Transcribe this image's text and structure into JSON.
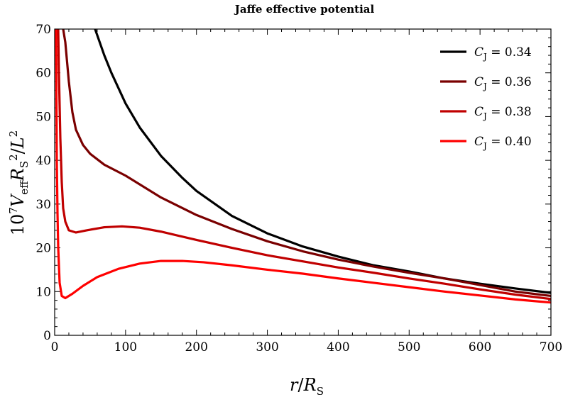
{
  "chart_data": {
    "type": "line",
    "title": "Jaffe effective potential",
    "xlabel": "r/R_S",
    "ylabel": "10^7 V_eff R_S^2/L^2",
    "xlim": [
      0,
      700
    ],
    "ylim": [
      0,
      70
    ],
    "x_ticks": [
      "0",
      "100",
      "200",
      "300",
      "400",
      "500",
      "600",
      "700"
    ],
    "y_ticks": [
      "0",
      "10",
      "20",
      "30",
      "40",
      "50",
      "60",
      "70"
    ],
    "legend_position": "top-right",
    "grid": false,
    "series": [
      {
        "name": "C_J = 0.34",
        "color": "#000000",
        "points": [
          [
            57,
            70
          ],
          [
            70,
            64
          ],
          [
            80,
            60
          ],
          [
            100,
            53
          ],
          [
            120,
            47.5
          ],
          [
            150,
            41
          ],
          [
            180,
            36
          ],
          [
            200,
            33
          ],
          [
            250,
            27.3
          ],
          [
            300,
            23.3
          ],
          [
            350,
            20.3
          ],
          [
            400,
            18
          ],
          [
            450,
            16
          ],
          [
            500,
            14.6
          ],
          [
            550,
            13
          ],
          [
            600,
            11.8
          ],
          [
            650,
            10.7
          ],
          [
            700,
            9.7
          ]
        ]
      },
      {
        "name": "C_J = 0.36",
        "color": "#7a0000",
        "points": [
          [
            12,
            70
          ],
          [
            15,
            67
          ],
          [
            20,
            58
          ],
          [
            25,
            51
          ],
          [
            30,
            47
          ],
          [
            40,
            43.5
          ],
          [
            50,
            41.5
          ],
          [
            70,
            39
          ],
          [
            100,
            36.5
          ],
          [
            150,
            31.5
          ],
          [
            200,
            27.5
          ],
          [
            250,
            24.3
          ],
          [
            300,
            21.5
          ],
          [
            350,
            19.2
          ],
          [
            400,
            17.3
          ],
          [
            450,
            15.7
          ],
          [
            500,
            14.3
          ],
          [
            550,
            13
          ],
          [
            600,
            11.5
          ],
          [
            650,
            10
          ],
          [
            700,
            9
          ]
        ]
      },
      {
        "name": "C_J = 0.38",
        "color": "#c00000",
        "points": [
          [
            5,
            70
          ],
          [
            6,
            60
          ],
          [
            8,
            45
          ],
          [
            10,
            35
          ],
          [
            12,
            29
          ],
          [
            15,
            26
          ],
          [
            20,
            24
          ],
          [
            30,
            23.5
          ],
          [
            45,
            24
          ],
          [
            70,
            24.7
          ],
          [
            95,
            24.9
          ],
          [
            120,
            24.6
          ],
          [
            150,
            23.7
          ],
          [
            200,
            21.8
          ],
          [
            250,
            20
          ],
          [
            300,
            18.3
          ],
          [
            350,
            16.9
          ],
          [
            400,
            15.5
          ],
          [
            450,
            14.3
          ],
          [
            500,
            13
          ],
          [
            550,
            11.8
          ],
          [
            600,
            10.5
          ],
          [
            650,
            9.3
          ],
          [
            700,
            8.3
          ]
        ]
      },
      {
        "name": "C_J = 0.40",
        "color": "#ff0000",
        "points": [
          [
            2,
            70
          ],
          [
            2.5,
            55
          ],
          [
            3,
            40
          ],
          [
            4,
            28
          ],
          [
            5,
            20
          ],
          [
            7,
            12
          ],
          [
            10,
            9
          ],
          [
            15,
            8.5
          ],
          [
            25,
            9.5
          ],
          [
            40,
            11.3
          ],
          [
            60,
            13.3
          ],
          [
            90,
            15.2
          ],
          [
            120,
            16.4
          ],
          [
            150,
            17
          ],
          [
            180,
            17
          ],
          [
            210,
            16.7
          ],
          [
            250,
            16
          ],
          [
            300,
            15
          ],
          [
            350,
            14.1
          ],
          [
            400,
            13
          ],
          [
            450,
            12
          ],
          [
            500,
            11
          ],
          [
            550,
            10
          ],
          [
            600,
            9.1
          ],
          [
            650,
            8.2
          ],
          [
            700,
            7.5
          ]
        ]
      }
    ]
  }
}
